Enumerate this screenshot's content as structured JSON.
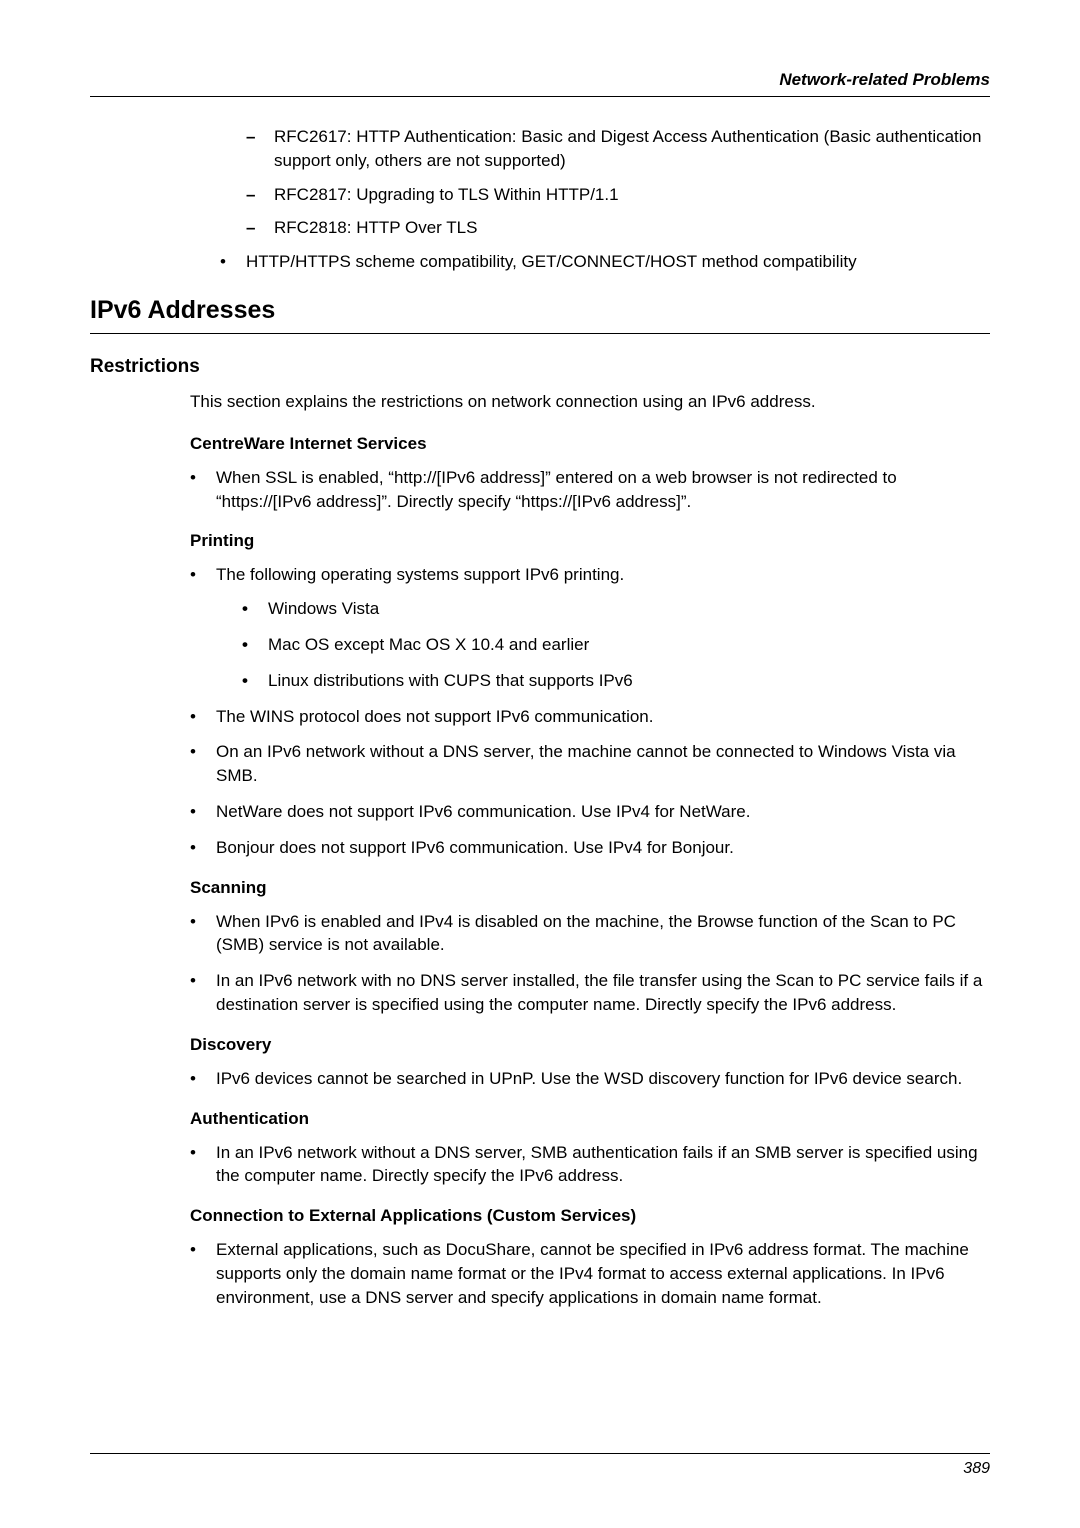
{
  "page": {
    "header": "Network-related Problems",
    "pagenum": "389"
  },
  "top_dash": [
    "RFC2617: HTTP Authentication: Basic and Digest Access Authentication (Basic authentication support only, others are not supported)",
    "RFC2817: Upgrading to TLS Within HTTP/1.1",
    "RFC2818: HTTP Over TLS"
  ],
  "top_bullet": "HTTP/HTTPS scheme compatibility, GET/CONNECT/HOST method compatibility",
  "section_title": "IPv6 Addresses",
  "subsection_title": "Restrictions",
  "intro": "This section explains the restrictions on network connection using an IPv6 address.",
  "groups": [
    {
      "title": "CentreWare Internet Services",
      "bullets": [
        "When SSL is enabled, “http://[IPv6 address]” entered on a web browser is not redirected to “https://[IPv6 address]”. Directly specify “https://[IPv6 address]”."
      ]
    },
    {
      "title": "Printing",
      "bullets": [
        "The following operating systems support IPv6 printing.",
        "The WINS protocol does not support IPv6 communication.",
        "On an IPv6 network without a DNS server, the machine cannot be connected to Windows Vista via SMB.",
        "NetWare does not support IPv6 communication. Use IPv4 for NetWare.",
        "Bonjour does not support IPv6 communication. Use IPv4 for Bonjour."
      ],
      "nested_after_first": [
        "Windows Vista",
        "Mac OS except Mac OS X 10.4 and earlier",
        "Linux distributions with CUPS that supports IPv6"
      ]
    },
    {
      "title": "Scanning",
      "bullets": [
        "When IPv6 is enabled and IPv4 is disabled on the machine, the Browse function of the Scan to PC (SMB) service is not available.",
        "In an IPv6 network with no DNS server installed, the file transfer using the Scan to PC service fails if a destination server is specified using the computer name. Directly specify the IPv6 address."
      ]
    },
    {
      "title": "Discovery",
      "bullets": [
        "IPv6 devices cannot be searched in UPnP. Use the WSD discovery function for IPv6 device search."
      ]
    },
    {
      "title": "Authentication",
      "bullets": [
        "In an IPv6 network without a DNS server, SMB authentication fails if an SMB server is specified using the computer name. Directly specify the IPv6 address."
      ]
    },
    {
      "title": "Connection to External Applications (Custom Services)",
      "bullets": [
        "External applications, such as DocuShare, cannot be specified in IPv6 address format. The machine supports only the domain name format or the IPv4 format to access external applications. In IPv6 environment, use a DNS server and specify applications in domain name format."
      ]
    }
  ]
}
